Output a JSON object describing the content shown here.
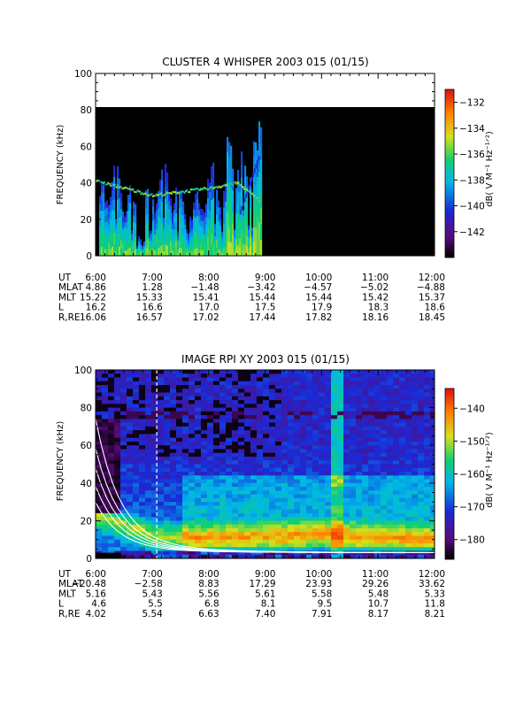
{
  "chart_data": [
    {
      "type": "heatmap",
      "title": "CLUSTER 4 WHISPER 2003 015 (01/15)",
      "ylabel": "FREQUENCY (kHz)",
      "ylim": [
        0,
        100
      ],
      "yticks": [
        "0",
        "20",
        "40",
        "60",
        "80",
        "100"
      ],
      "xlim": [
        "6:00",
        "12:00"
      ],
      "data_ceiling_khz": 80,
      "data_end_time": "8:55",
      "colorbar": {
        "label": "dB( V M⁻¹ Hz⁻¹ᐟ²)",
        "range": [
          -144,
          -131
        ],
        "ticks": [
          "-132",
          "-134",
          "-136",
          "-138",
          "-140",
          "-142"
        ]
      },
      "features": {
        "upper_band_khz": [
          [
            6.0,
            41
          ],
          [
            6.5,
            37
          ],
          [
            7.0,
            33
          ],
          [
            7.5,
            35
          ],
          [
            8.0,
            37
          ],
          [
            8.5,
            40
          ],
          [
            8.9,
            30
          ]
        ],
        "plasma_resonance_end_khz": 56
      },
      "ephemeris": {
        "rows": [
          {
            "label": "UT",
            "values": [
              "6:00",
              "7:00",
              "8:00",
              "9:00",
              "10:00",
              "11:00",
              "12:00"
            ]
          },
          {
            "label": "MLAT",
            "values": [
              "4.86",
              "1.28",
              "−1.48",
              "−3.42",
              "−4.57",
              "−5.02",
              "−4.88"
            ]
          },
          {
            "label": "MLT",
            "values": [
              "15.22",
              "15.33",
              "15.41",
              "15.44",
              "15.44",
              "15.42",
              "15.37"
            ]
          },
          {
            "label": "L",
            "values": [
              "16.2",
              "16.6",
              "17.0",
              "17.5",
              "17.9",
              "18.3",
              "18.6"
            ]
          },
          {
            "label": "R,RE",
            "values": [
              "16.06",
              "16.57",
              "17.02",
              "17.44",
              "17.82",
              "18.16",
              "18.45"
            ]
          }
        ]
      }
    },
    {
      "type": "heatmap",
      "title": "IMAGE RPI XY 2003 015 (01/15)",
      "ylabel": "FREQUENCY (kHz)",
      "ylim": [
        0,
        100
      ],
      "yticks": [
        "0",
        "20",
        "40",
        "60",
        "80",
        "100"
      ],
      "xlim": [
        "6:00",
        "12:00"
      ],
      "marker_time": "7:05",
      "colorbar": {
        "label": "dB( V M⁻¹ Hz⁻¹ᐟ²)",
        "range": [
          -186,
          -134
        ],
        "ticks": [
          "-140",
          "-150",
          "-160",
          "-170",
          "-180"
        ]
      },
      "features": {
        "bright_band_khz": [
          [
            6.5,
            18
          ],
          [
            7.0,
            13
          ],
          [
            8.0,
            12
          ],
          [
            10.0,
            14
          ],
          [
            12.0,
            11
          ]
        ],
        "bright_column_time": "10:15",
        "cutoff_curves_khz_start": [
          70,
          55,
          45,
          36,
          28
        ]
      },
      "ephemeris": {
        "rows": [
          {
            "label": "UT",
            "values": [
              "6:00",
              "7:00",
              "8:00",
              "9:00",
              "10:00",
              "11:00",
              "12:00"
            ]
          },
          {
            "label": "MLAT",
            "values": [
              "−20.48",
              "−2.58",
              "8.83",
              "17.29",
              "23.93",
              "29.26",
              "33.62"
            ]
          },
          {
            "label": "MLT",
            "values": [
              "5.16",
              "5.43",
              "5.56",
              "5.61",
              "5.58",
              "5.48",
              "5.33"
            ]
          },
          {
            "label": "L",
            "values": [
              "4.6",
              "5.5",
              "6.8",
              "8.1",
              "9.5",
              "10.7",
              "11.8"
            ]
          },
          {
            "label": "R,RE",
            "values": [
              "4.02",
              "5.54",
              "6.63",
              "7.40",
              "7.91",
              "8.17",
              "8.21"
            ]
          }
        ]
      }
    }
  ]
}
